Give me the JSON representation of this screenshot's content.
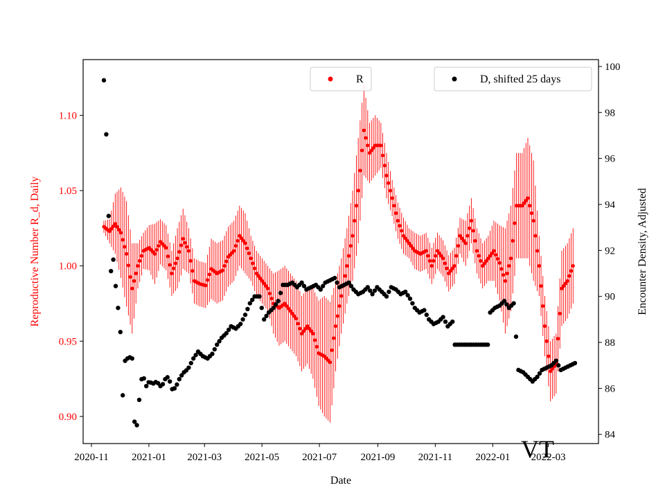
{
  "chart_data": {
    "type": "scatter",
    "xlabel": "Date",
    "ylabel_left": "Reproductive Number R_d, Daily",
    "ylabel_right": "Encounter Density, Adjusted",
    "annotation": "VT",
    "x_ticks": [
      "2020-11",
      "2021-01",
      "2021-03",
      "2021-05",
      "2021-07",
      "2021-09",
      "2021-11",
      "2022-01",
      "2022-03"
    ],
    "y_left_ticks": [
      "0.90",
      "0.95",
      "1.00",
      "1.05",
      "1.10"
    ],
    "y_right_ticks": [
      "84",
      "86",
      "88",
      "90",
      "92",
      "94",
      "96",
      "98",
      "100"
    ],
    "y_left_range": [
      0.882,
      1.137
    ],
    "y_right_range": [
      83.6,
      100.3
    ],
    "colors": {
      "r_series": "#ff0000",
      "d_series": "#000000"
    },
    "legend_left": {
      "label": "R"
    },
    "legend_right": {
      "label": "D, shifted 25 days"
    },
    "r_series": {
      "name": "R",
      "x": [
        0,
        6,
        12,
        18,
        24,
        30,
        36,
        42,
        48,
        54,
        60,
        66,
        72,
        78,
        84,
        90,
        96,
        102,
        108,
        114,
        120,
        126,
        132,
        138,
        144,
        150,
        156,
        162,
        168,
        174,
        180,
        186,
        192,
        198,
        204,
        210,
        216,
        222,
        228,
        234,
        240,
        246,
        252,
        258,
        264,
        270,
        276,
        282,
        288,
        294,
        300,
        306,
        312,
        318,
        324,
        330,
        336,
        342,
        348,
        354,
        360,
        366,
        372,
        378,
        384,
        390,
        396,
        402,
        408,
        414,
        420,
        426,
        432,
        438,
        444,
        450,
        456,
        462,
        468,
        474,
        480,
        486,
        492,
        498
      ],
      "y": [
        1.026,
        1.023,
        1.028,
        1.022,
        1.008,
        0.985,
        1.0,
        1.01,
        1.012,
        1.008,
        1.016,
        1.012,
        0.995,
        1.005,
        1.018,
        1.01,
        0.99,
        0.988,
        0.987,
        0.998,
        0.995,
        0.997,
        1.006,
        1.01,
        1.02,
        1.015,
        1.005,
        0.995,
        0.99,
        0.985,
        0.975,
        0.972,
        0.975,
        0.97,
        0.965,
        0.955,
        0.96,
        0.955,
        0.942,
        0.94,
        0.936,
        0.96,
        0.98,
        1.0,
        1.02,
        1.05,
        1.09,
        1.075,
        1.08,
        1.08,
        1.06,
        1.045,
        1.03,
        1.02,
        1.015,
        1.01,
        1.008,
        1.01,
        1.0,
        1.01,
        1.005,
        0.995,
        1.0,
        1.02,
        1.015,
        1.03,
        1.01,
        1.0,
        1.005,
        1.01,
        1.002,
        0.99,
        1.005,
        1.04,
        1.04,
        1.045,
        1.03,
        1.0,
        0.96,
        0.93,
        0.935,
        0.985,
        0.99,
        1.0
      ],
      "err": [
        0.004,
        0.008,
        0.02,
        0.03,
        0.035,
        0.03,
        0.015,
        0.012,
        0.015,
        0.02,
        0.015,
        0.015,
        0.015,
        0.02,
        0.02,
        0.015,
        0.015,
        0.015,
        0.015,
        0.02,
        0.02,
        0.02,
        0.02,
        0.02,
        0.02,
        0.02,
        0.015,
        0.015,
        0.015,
        0.015,
        0.02,
        0.025,
        0.025,
        0.025,
        0.025,
        0.025,
        0.025,
        0.03,
        0.035,
        0.04,
        0.04,
        0.03,
        0.025,
        0.025,
        0.03,
        0.035,
        0.03,
        0.02,
        0.02,
        0.015,
        0.015,
        0.012,
        0.012,
        0.012,
        0.01,
        0.012,
        0.012,
        0.012,
        0.012,
        0.012,
        0.012,
        0.012,
        0.012,
        0.012,
        0.015,
        0.015,
        0.015,
        0.015,
        0.015,
        0.02,
        0.025,
        0.035,
        0.035,
        0.035,
        0.035,
        0.04,
        0.04,
        0.02,
        0.02,
        0.02,
        0.02,
        0.025,
        0.025,
        0.025
      ]
    },
    "d_series": {
      "name": "D, shifted 25 days",
      "x": [
        0,
        1,
        2,
        3,
        4,
        5,
        6,
        7,
        8,
        9,
        10,
        11,
        12,
        13,
        14,
        15,
        16,
        17,
        18,
        19,
        20,
        21,
        22,
        23,
        24,
        25,
        26,
        27,
        28,
        29,
        30,
        31,
        32,
        33,
        34,
        35,
        36,
        37,
        38,
        39,
        40,
        42,
        45,
        48,
        52,
        56,
        60,
        63,
        65,
        68,
        70,
        73,
        75,
        78,
        80,
        83,
        85,
        88,
        90,
        95,
        100,
        105,
        110,
        115,
        120,
        125,
        130,
        135,
        140,
        145,
        150,
        155,
        160,
        165,
        170,
        175,
        180,
        185,
        190,
        195,
        200,
        205,
        210,
        215,
        220,
        225,
        230,
        235,
        240,
        245,
        250,
        255,
        260,
        265,
        270,
        275,
        280,
        285,
        290,
        295,
        300,
        305,
        310,
        315,
        320,
        325,
        330,
        335,
        340,
        345,
        350,
        355,
        360,
        365,
        370,
        375,
        380,
        385,
        390,
        395,
        400,
        405,
        410,
        415,
        420,
        425,
        430,
        435,
        440,
        445,
        450,
        455,
        460,
        465,
        470,
        475,
        480,
        485,
        490,
        495,
        500
      ],
      "y": [
        99.4,
        99.1,
        97.7,
        96.4,
        94.8,
        93.5,
        92.1,
        91.2,
        91.0,
        91.3,
        91.6,
        91.2,
        90.9,
        90.0,
        90.2,
        89.5,
        89.6,
        89.6,
        87.3,
        86.0,
        85.7,
        85.7,
        87.0,
        87.4,
        87.4,
        87.3,
        87.4,
        87.5,
        87.2,
        87.1,
        87.3,
        85.4,
        84.8,
        84.3,
        84.3,
        84.4,
        84.6,
        84.9,
        86.1,
        86.2,
        86.4,
        86.5,
        86.1,
        86.3,
        86.2,
        86.3,
        86.1,
        86.2,
        86.4,
        86.5,
        86.3,
        85.9,
        86.0,
        86.2,
        86.4,
        86.6,
        86.7,
        86.8,
        86.9,
        87.3,
        87.6,
        87.4,
        87.3,
        87.5,
        87.9,
        88.2,
        88.4,
        88.7,
        88.6,
        88.8,
        89.2,
        89.7,
        90.0,
        90.0,
        89.0,
        89.3,
        89.5,
        89.8,
        90.5,
        90.5,
        90.6,
        90.4,
        90.6,
        90.3,
        90.4,
        90.5,
        90.3,
        90.6,
        90.7,
        90.8,
        90.4,
        90.5,
        90.6,
        90.3,
        90.1,
        90.2,
        90.4,
        90.1,
        90.4,
        90.2,
        90.0,
        90.4,
        90.3,
        90.1,
        90.2,
        89.9,
        89.5,
        89.3,
        89.4,
        89.0,
        88.8,
        88.9,
        89.1,
        88.7,
        88.9,
        89.0,
        89.2,
        88.5,
        88.6,
        88.8,
        89.1,
        88.9,
        89.3,
        89.5,
        89.6,
        89.8,
        89.5,
        89.7,
        86.8,
        86.7,
        86.5,
        86.3,
        86.5,
        86.8,
        86.9,
        87.0,
        87.2,
        86.8,
        86.9,
        87.0,
        87.1
      ]
    },
    "d_flat": {
      "x_start": 372,
      "x_end": 408,
      "value": 87.9
    }
  }
}
